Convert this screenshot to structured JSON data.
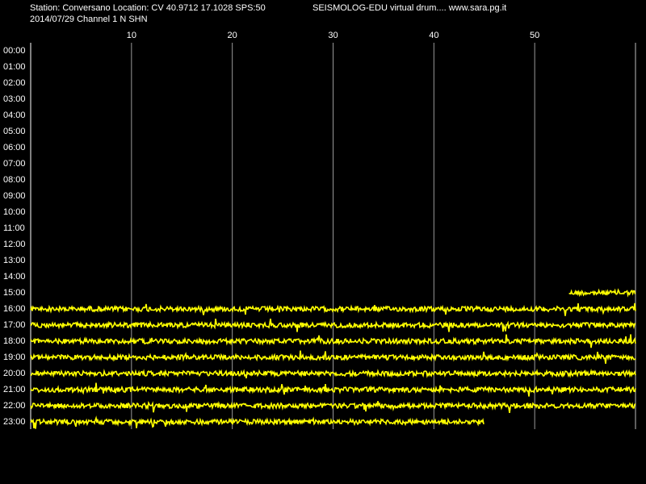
{
  "header": {
    "station": "Station: Conversano Location: CV 40.9712 17.1028 SPS:50",
    "program": "SEISMOLOG-EDU virtual drum.... www.sara.pg.it",
    "date": "2014/07/29  Channel 1 N SHN"
  },
  "xlim": [
    0,
    60
  ],
  "xticks": [
    10,
    20,
    30,
    40,
    50
  ],
  "rows": [
    "00:00",
    "01:00",
    "02:00",
    "03:00",
    "04:00",
    "05:00",
    "06:00",
    "07:00",
    "08:00",
    "09:00",
    "10:00",
    "11:00",
    "12:00",
    "13:00",
    "14:00",
    "15:00",
    "16:00",
    "17:00",
    "18:00",
    "19:00",
    "20:00",
    "21:00",
    "22:00",
    "23:00"
  ],
  "traces": [
    {
      "row": 15,
      "start": 53.4,
      "end": 60
    },
    {
      "row": 16,
      "start": 0,
      "end": 60
    },
    {
      "row": 17,
      "start": 0,
      "end": 60
    },
    {
      "row": 18,
      "start": 0,
      "end": 60
    },
    {
      "row": 19,
      "start": 0,
      "end": 60
    },
    {
      "row": 20,
      "start": 0,
      "end": 60
    },
    {
      "row": 21,
      "start": 0,
      "end": 60
    },
    {
      "row": 22,
      "start": 0,
      "end": 60
    },
    {
      "row": 23,
      "start": 0,
      "end": 45
    }
  ]
}
